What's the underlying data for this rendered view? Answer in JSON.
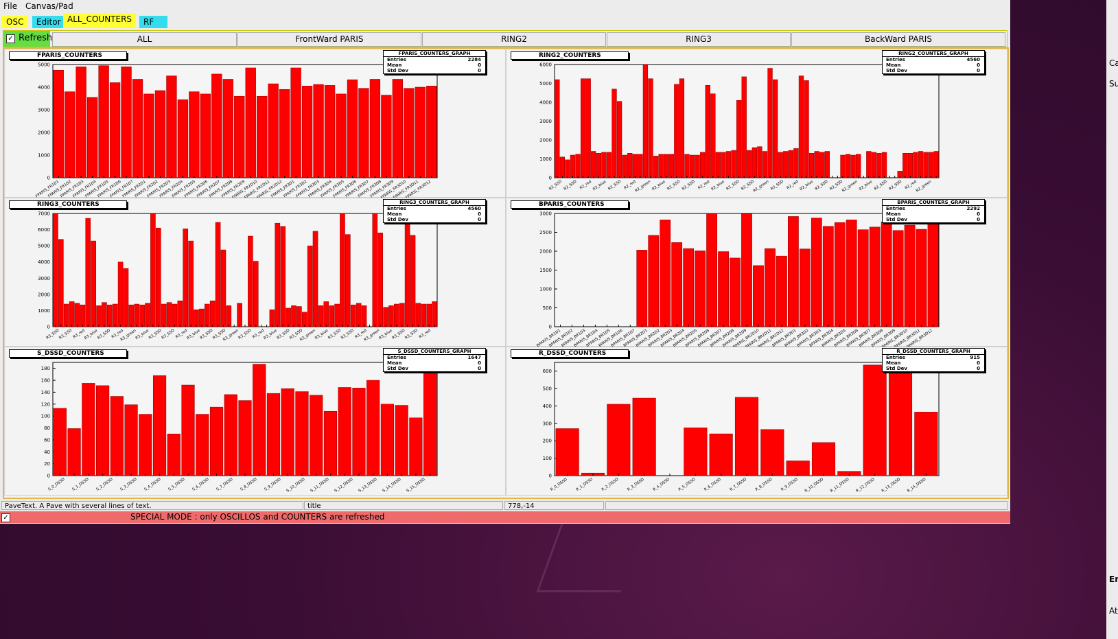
{
  "menubar": {
    "file": "File",
    "canvas": "Canvas/Pad"
  },
  "tabs": [
    {
      "label": "OSC",
      "color": "#ffff33"
    },
    {
      "label": "Editor",
      "color": "#33ddee"
    },
    {
      "label": "ALL_COUNTERS",
      "color": "#ffff33"
    },
    {
      "label": "RF",
      "color": "#33ddee"
    }
  ],
  "buttonbar": {
    "refresh_label": "Refresh",
    "buttons": [
      "ALL",
      "FrontWard PARIS",
      "RING2",
      "RING3",
      "BackWard PARIS"
    ]
  },
  "status": {
    "field1": "PaveText. A Pave with several lines of text.",
    "field2": "title",
    "field3": "778,-14",
    "field4": ""
  },
  "special_mode": "SPECIAL MODE : only OSCILLOS and COUNTERS are refreshed",
  "side_panel": [
    "Ca",
    "Su",
    "En",
    "At"
  ],
  "stat_labels": {
    "entries": "Entries",
    "mean": "Mean",
    "stddev": "Std Dev"
  },
  "bar_color": "#ff0000",
  "chart_data": [
    {
      "type": "bar",
      "title": "FPARIS_COUNTERS",
      "stats_title": "FPARIS_COUNTERS_GRAPH",
      "entries": "2284",
      "mean": "0",
      "stddev": "0",
      "ylim": [
        0,
        5000
      ],
      "yticks": [
        0,
        1000,
        2000,
        3000,
        4000,
        5000
      ],
      "tick_labels": [
        "FPARIS_FR1D1",
        "FPARIS_FR1D2",
        "FPARIS_FR1D3",
        "FPARIS_FR1D4",
        "FPARIS_FR1D5",
        "FPARIS_FR1D6",
        "FPARIS_FR1D7",
        "FPARIS_FR2D1",
        "FPARIS_FR2D2",
        "FPARIS_FR2D3",
        "FPARIS_FR2D4",
        "FPARIS_FR2D5",
        "FPARIS_FR2D6",
        "FPARIS_FR2D7",
        "FPARIS_FR2D8",
        "FPARIS_FR2D9",
        "FPARIS_FR2D10",
        "FPARIS_FR2D11",
        "FPARIS_FR2D12",
        "FPARIS_FR3D1",
        "FPARIS_FR3D2",
        "FPARIS_FR3D3",
        "FPARIS_FR3D4",
        "FPARIS_FR3D5",
        "FPARIS_FR3D6",
        "FPARIS_FR3D7",
        "FPARIS_FR3D8",
        "FPARIS_FR3D9",
        "FPARIS_FR3D10",
        "FPARIS_FR3D11",
        "FPARIS_FR3D12"
      ],
      "values": [
        4750,
        3800,
        4900,
        3550,
        4950,
        4200,
        4900,
        4350,
        3700,
        3850,
        4500,
        3450,
        3800,
        3700,
        4580,
        4350,
        3600,
        4850,
        3600,
        4150,
        3900,
        4850,
        4050,
        4120,
        4080,
        3700,
        4330,
        3950,
        4350,
        3650,
        4350,
        3950,
        4000,
        4050
      ]
    },
    {
      "type": "bar",
      "title": "RING2_COUNTERS",
      "stats_title": "RING2_COUNTERS_GRAPH",
      "entries": "4560",
      "mean": "0",
      "stddev": "0",
      "ylim": [
        0,
        6000
      ],
      "yticks": [
        0,
        1000,
        2000,
        3000,
        4000,
        5000,
        6000
      ],
      "tick_labels": [
        "R2_SSD",
        "R2_SSD",
        "R2_red",
        "R2_blue",
        "R2_SSD",
        "R2_red",
        "R2_green",
        "R2_blue",
        "R2_SSD",
        "R2_SSD",
        "R2_red",
        "R2_blue",
        "R2_SSD",
        "R2_SSD",
        "R2_green",
        "R2_SSD",
        "R2_red",
        "R2_blue",
        "R2_SSD",
        "R2_SSD",
        "R2_green",
        "R2_blue",
        "R2_SSD",
        "R2_SSD",
        "R2_red",
        "R2_green"
      ],
      "values": [
        5200,
        1100,
        950,
        1200,
        1250,
        5250,
        5250,
        1400,
        1300,
        1350,
        1350,
        4700,
        4050,
        1200,
        1300,
        1250,
        1250,
        6000,
        5250,
        1150,
        1250,
        1250,
        1250,
        4950,
        5250,
        1250,
        1200,
        1200,
        1350,
        4900,
        4450,
        1350,
        1350,
        1400,
        1450,
        4100,
        5350,
        1450,
        1600,
        1650,
        1400,
        5800,
        5200,
        1350,
        1400,
        1450,
        1550,
        5400,
        5150,
        1300,
        1400,
        1350,
        1400,
        0,
        0,
        1200,
        1250,
        1200,
        1250,
        0,
        1400,
        1350,
        1300,
        1350,
        0,
        0,
        350,
        1300,
        1300,
        1350,
        1400,
        1350,
        1350,
        1400
      ]
    },
    {
      "type": "bar",
      "title": "RING3_COUNTERS",
      "stats_title": "RING3_COUNTERS_GRAPH",
      "entries": "4560",
      "mean": "0",
      "stddev": "0",
      "ylim": [
        0,
        7000
      ],
      "yticks": [
        0,
        1000,
        2000,
        3000,
        4000,
        5000,
        6000,
        7000
      ],
      "tick_labels": [
        "R3_SSD",
        "R3_SSD",
        "R3_red",
        "R3_blue",
        "R3_SSD",
        "R3_red",
        "R3_green",
        "R3_blue",
        "R3_SSD",
        "R3_SSD",
        "R3_red",
        "R3_blue",
        "R3_SSD",
        "R3_SSD",
        "R3_green",
        "R3_SSD",
        "R3_red",
        "R3_blue",
        "R3_SSD",
        "R3_SSD",
        "R3_green",
        "R3_blue",
        "R3_SSD",
        "R3_SSD",
        "R3_red",
        "R3_green",
        "R3_blue",
        "R3_SSD",
        "R3_SSD",
        "R3_red"
      ],
      "values": [
        7200,
        5400,
        1400,
        1550,
        1450,
        1350,
        6700,
        5300,
        1300,
        1500,
        1350,
        1400,
        4000,
        3600,
        1350,
        1400,
        1350,
        1450,
        7200,
        6100,
        1400,
        1500,
        1400,
        1600,
        6050,
        5300,
        1050,
        1100,
        1400,
        1600,
        6450,
        4750,
        1300,
        0,
        1450,
        0,
        5600,
        4050,
        0,
        0,
        1050,
        6400,
        6200,
        1150,
        1300,
        1250,
        900,
        5000,
        5900,
        1300,
        1550,
        1300,
        1400,
        7050,
        5700,
        1350,
        1450,
        1300,
        0,
        7100,
        5800,
        1200,
        1300,
        1400,
        1450,
        6600,
        5650,
        1450,
        1400,
        1400,
        1550
      ]
    },
    {
      "type": "bar",
      "title": "BPARIS_COUNTERS",
      "stats_title": "BPARIS_COUNTERS_GRAPH",
      "entries": "2292",
      "mean": "0",
      "stddev": "0",
      "ylim": [
        0,
        3000
      ],
      "yticks": [
        0,
        500,
        1000,
        1500,
        2000,
        2500,
        3000
      ],
      "tick_labels": [
        "BPARIS_BR1D1",
        "BPARIS_BR1D2",
        "BPARIS_BR1D3",
        "BPARIS_BR1D4",
        "BPARIS_BR1D5",
        "BPARIS_BR1D6",
        "BPARIS_BR1D7",
        "BPARIS_BR2D1",
        "BPARIS_BR2D2",
        "BPARIS_BR2D3",
        "BPARIS_BR2D4",
        "BPARIS_BR2D5",
        "BPARIS_BR2D6",
        "BPARIS_BR2D7",
        "BPARIS_BR2D8",
        "BPARIS_BR2D9",
        "BPARIS_BR2D10",
        "BPARIS_BR2D11",
        "BPARIS_BR2D12",
        "BPARIS_BR3D1",
        "BPARIS_BR3D2",
        "BPARIS_BR3D3",
        "BPARIS_BR3D4",
        "BPARIS_BR3D5",
        "BPARIS_BR3D6",
        "BPARIS_BR3D7",
        "BPARIS_BR3D8",
        "BPARIS_BR3D9",
        "BPARIS_BR3D10",
        "BPARIS_BR3D11",
        "BPARIS_BR3D12"
      ],
      "values": [
        0,
        0,
        0,
        0,
        0,
        0,
        0,
        2030,
        2420,
        2830,
        2230,
        2070,
        2010,
        3050,
        1990,
        1820,
        2990,
        1620,
        2070,
        1870,
        2920,
        2060,
        2880,
        2660,
        2760,
        2830,
        2570,
        2640,
        2780,
        2550,
        2690,
        2580,
        2730
      ]
    },
    {
      "type": "bar",
      "title": "S_DSSD_COUNTERS",
      "stats_title": "S_DSSD_COUNTERS_GRAPH",
      "entries": "1647",
      "mean": "0",
      "stddev": "0",
      "ylim": [
        0,
        190
      ],
      "yticks": [
        0,
        20,
        40,
        60,
        80,
        100,
        120,
        140,
        160,
        180
      ],
      "tick_labels": [
        "S_0_DSSD",
        "S_1_DSSD",
        "S_2_DSSD",
        "S_3_DSSD",
        "S_4_DSSD",
        "S_5_DSSD",
        "S_6_DSSD",
        "S_7_DSSD",
        "S_8_DSSD",
        "S_9_DSSD",
        "S_10_DSSD",
        "S_11_DSSD",
        "S_12_DSSD",
        "S_13_DSSD",
        "S_14_DSSD",
        "S_15_DSSD"
      ],
      "values": [
        113,
        79,
        155,
        151,
        133,
        119,
        103,
        168,
        70,
        152,
        103,
        115,
        136,
        126,
        187,
        138,
        146,
        141,
        135,
        108,
        148,
        147,
        160,
        120,
        118,
        97,
        185
      ]
    },
    {
      "type": "bar",
      "title": "R_DSSD_COUNTERS",
      "stats_title": "R_DSSD_COUNTERS_GRAPH",
      "entries": "915",
      "mean": "0",
      "stddev": "0",
      "ylim": [
        0,
        650
      ],
      "yticks": [
        0,
        100,
        200,
        300,
        400,
        500,
        600
      ],
      "tick_labels": [
        "R_0_DSSD",
        "R_1_DSSD",
        "R_2_DSSD",
        "R_3_DSSD",
        "R_4_DSSD",
        "R_5_DSSD",
        "R_6_DSSD",
        "R_7_DSSD",
        "R_8_DSSD",
        "R_9_DSSD",
        "R_10_DSSD",
        "R_11_DSSD",
        "R_12_DSSD",
        "R_13_DSSD",
        "R_14_DSSD"
      ],
      "values": [
        270,
        15,
        410,
        445,
        0,
        275,
        240,
        450,
        265,
        85,
        190,
        25,
        635,
        630,
        365
      ]
    }
  ]
}
